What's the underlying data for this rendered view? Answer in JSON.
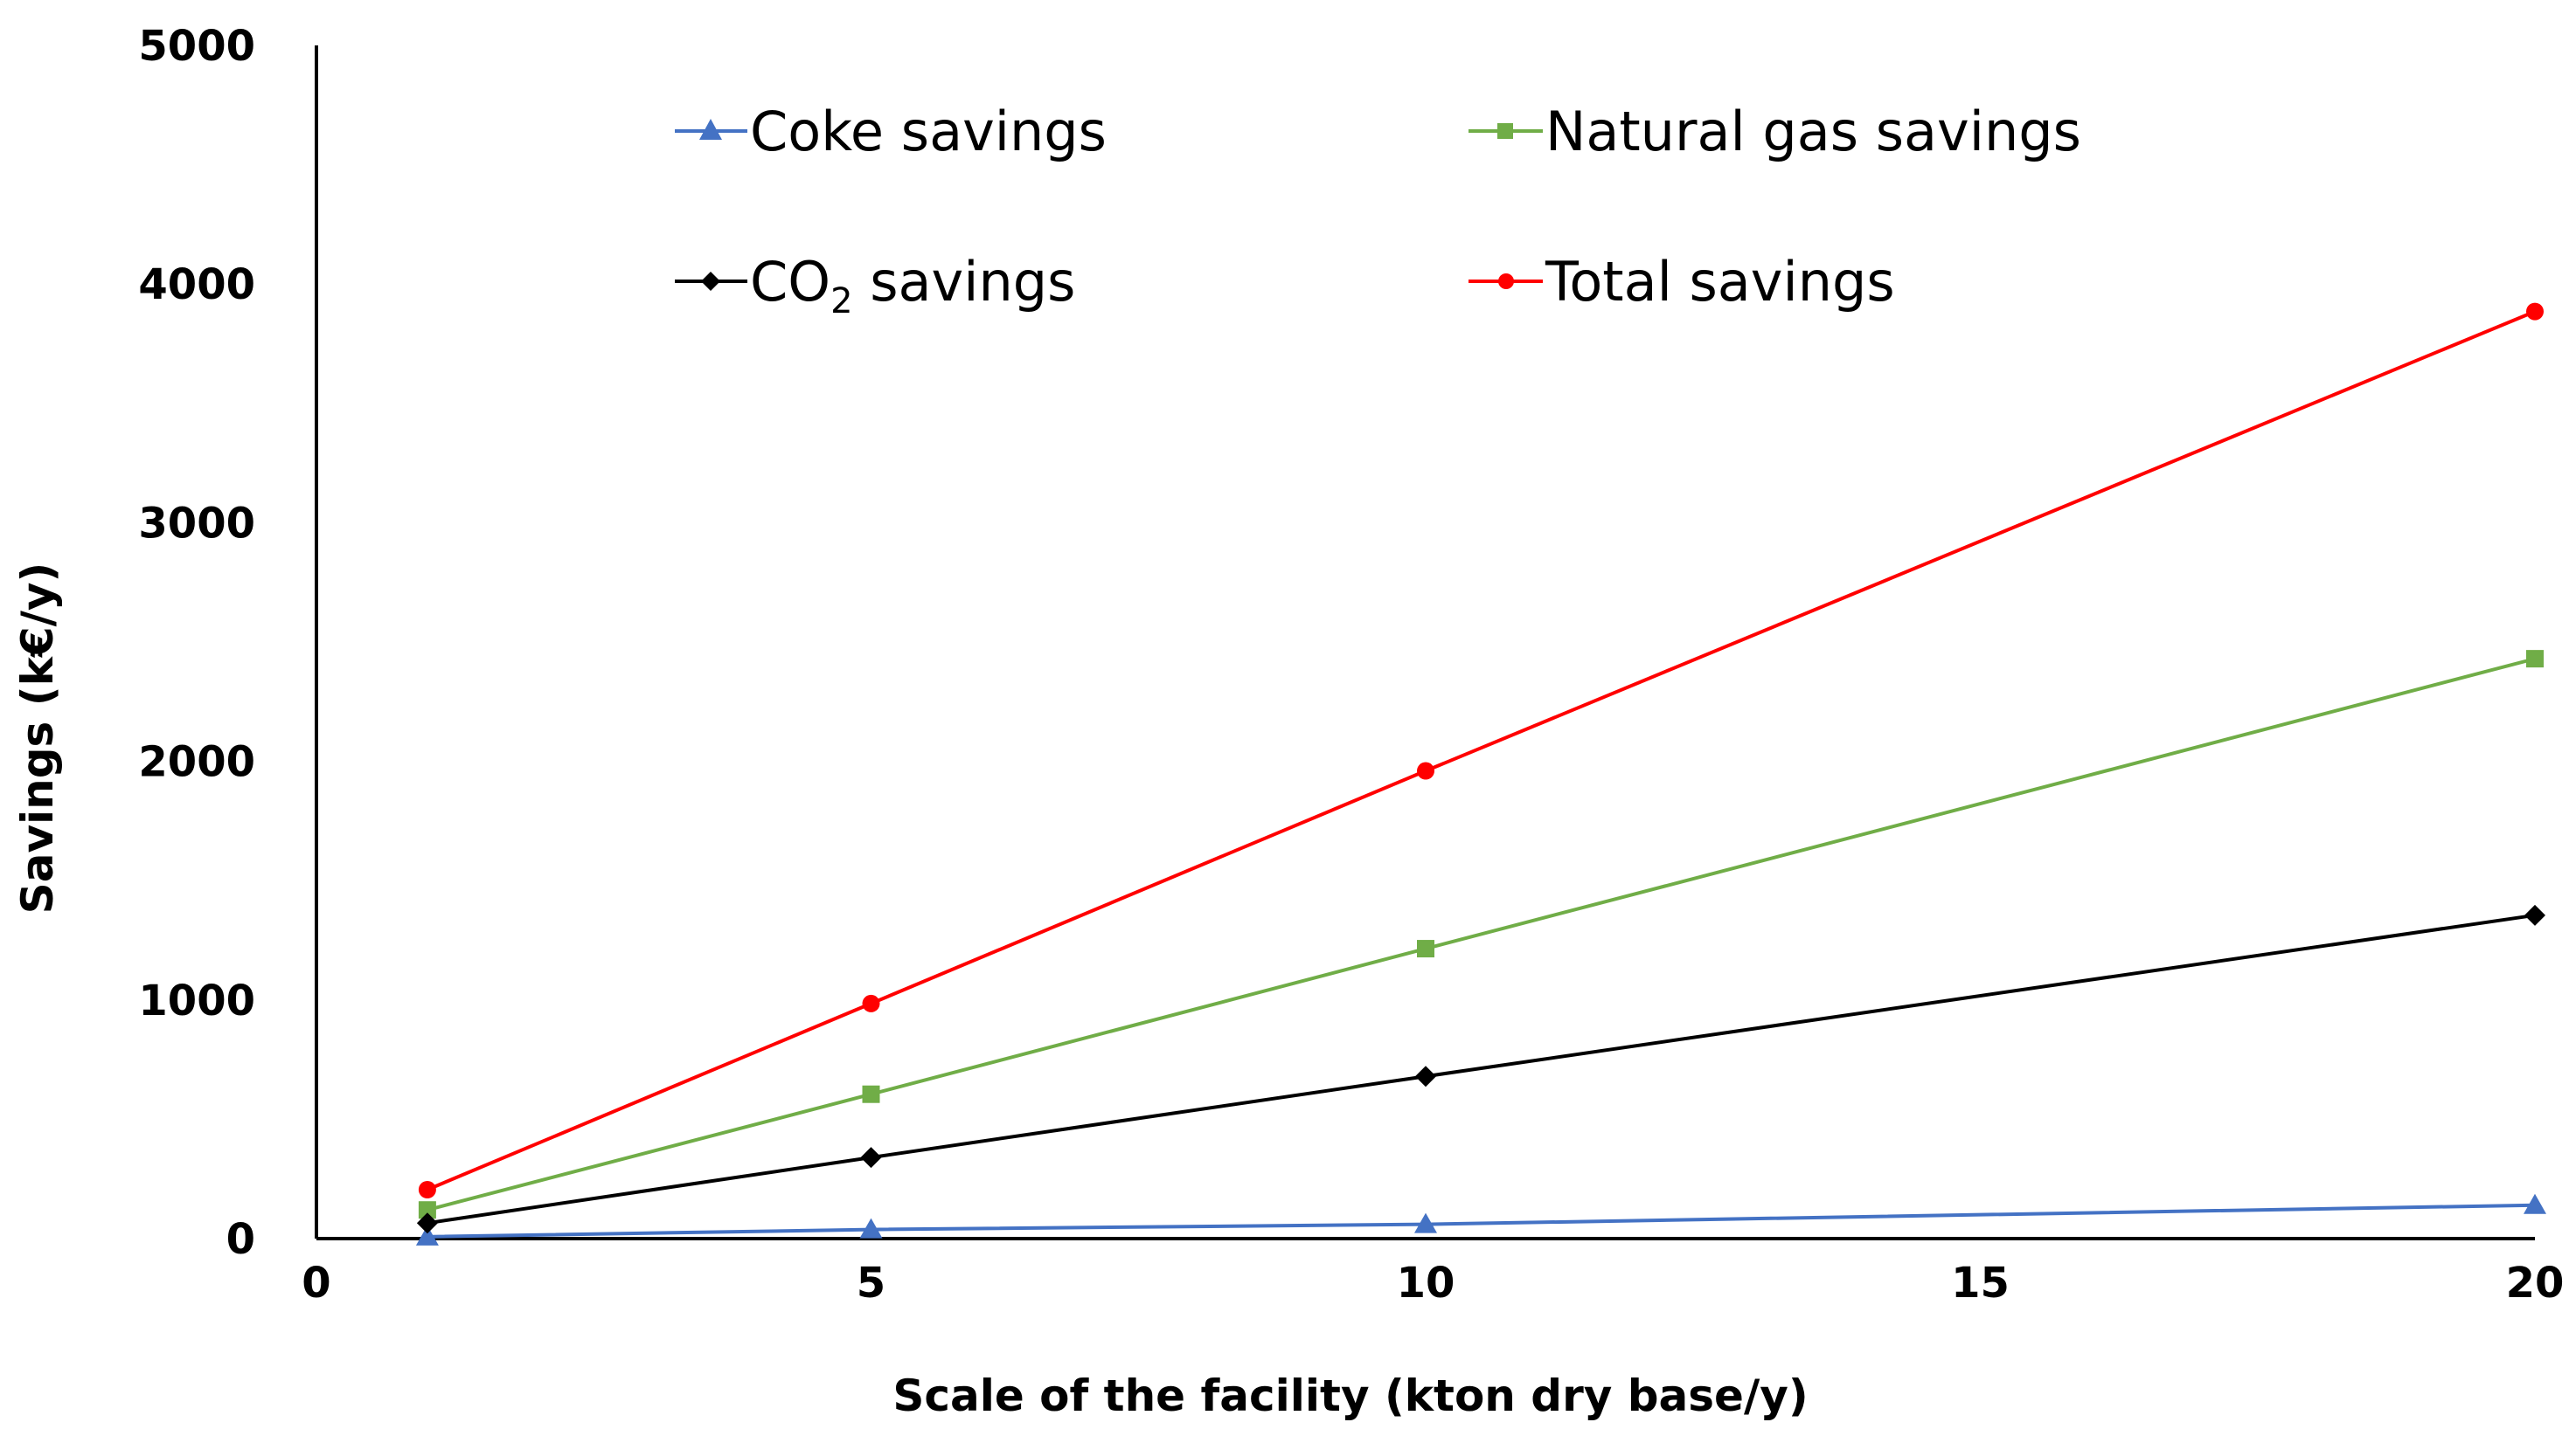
{
  "chart_data": {
    "type": "line",
    "title": "",
    "xlabel": "Scale of the facility (kton dry base/y)",
    "ylabel": "Savings (k€/y)",
    "xlim": [
      0,
      20
    ],
    "ylim": [
      0,
      5000
    ],
    "xticks": [
      0,
      5,
      10,
      15,
      20
    ],
    "yticks": [
      0,
      1000,
      2000,
      3000,
      4000,
      5000
    ],
    "x": [
      1,
      5,
      10,
      20
    ],
    "grid": false,
    "legend_position": "top",
    "series": [
      {
        "key": "coke",
        "name": "Coke savings",
        "marker": "triangle",
        "color": "#4472C4",
        "values": [
          8,
          38,
          60,
          140
        ]
      },
      {
        "key": "natgas",
        "name": "Natural gas savings",
        "marker": "square",
        "color": "#70AD47",
        "values": [
          120,
          605,
          1215,
          2430
        ]
      },
      {
        "key": "co2",
        "name": "CO2 savings",
        "name_main": "CO",
        "name_sub": "2",
        "name_rest": " savings",
        "marker": "diamond",
        "color": "#000000",
        "values": [
          65,
          340,
          680,
          1355
        ]
      },
      {
        "key": "total",
        "name": "Total savings",
        "marker": "circle",
        "color": "#FF0000",
        "values": [
          205,
          985,
          1960,
          3885
        ]
      }
    ]
  }
}
